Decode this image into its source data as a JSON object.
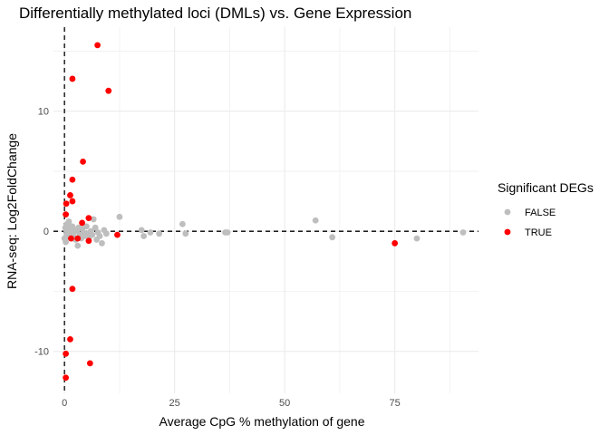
{
  "chart_data": {
    "type": "scatter",
    "title": "Differentially methylated loci (DMLs) vs. Gene Expression",
    "xlabel": "Average CpG % methylation of gene",
    "ylabel": "RNA-seq: Log2FoldChange",
    "xlim": [
      -2.5,
      94
    ],
    "ylim": [
      -13.5,
      17
    ],
    "x_ticks": [
      0,
      25,
      50,
      75
    ],
    "y_ticks": [
      -10,
      0,
      10
    ],
    "grid": true,
    "reference_lines": {
      "x": 0,
      "y": 0,
      "style": "dashed"
    },
    "legend": {
      "title": "Significant DEGs",
      "position": "right"
    },
    "series": [
      {
        "name": "FALSE",
        "color": "#bebebe",
        "points": [
          [
            0.0,
            -0.6
          ],
          [
            0.2,
            0.3
          ],
          [
            0.3,
            -0.9
          ],
          [
            0.4,
            0.1
          ],
          [
            0.5,
            -0.3
          ],
          [
            0.6,
            0.6
          ],
          [
            0.8,
            -0.1
          ],
          [
            1.0,
            0.8
          ],
          [
            1.2,
            -0.5
          ],
          [
            1.4,
            0.2
          ],
          [
            1.6,
            -0.2
          ],
          [
            1.8,
            0.4
          ],
          [
            2.0,
            -0.4
          ],
          [
            2.2,
            0.1
          ],
          [
            2.5,
            -0.7
          ],
          [
            2.8,
            0.0
          ],
          [
            3.0,
            -1.2
          ],
          [
            3.2,
            0.3
          ],
          [
            3.5,
            -0.3
          ],
          [
            3.8,
            -0.6
          ],
          [
            4.0,
            0.2
          ],
          [
            4.3,
            -0.1
          ],
          [
            4.6,
            -0.4
          ],
          [
            5.0,
            0.4
          ],
          [
            5.3,
            -0.2
          ],
          [
            5.6,
            -0.5
          ],
          [
            6.0,
            0.0
          ],
          [
            6.3,
            -0.3
          ],
          [
            6.6,
            1.0
          ],
          [
            7.0,
            0.3
          ],
          [
            7.3,
            -0.7
          ],
          [
            7.6,
            -0.1
          ],
          [
            8.0,
            -0.4
          ],
          [
            8.5,
            -1.0
          ],
          [
            9.0,
            0.1
          ],
          [
            9.5,
            -0.2
          ],
          [
            12.5,
            1.2
          ],
          [
            17.5,
            0.1
          ],
          [
            18.0,
            -0.4
          ],
          [
            19.5,
            -0.1
          ],
          [
            21.5,
            -0.2
          ],
          [
            26.8,
            0.6
          ],
          [
            27.5,
            -0.2
          ],
          [
            36.5,
            -0.1
          ],
          [
            37.0,
            -0.1
          ],
          [
            57.0,
            0.9
          ],
          [
            60.8,
            -0.5
          ],
          [
            80.0,
            -0.6
          ],
          [
            90.5,
            -0.1
          ]
        ]
      },
      {
        "name": "TRUE",
        "color": "#ff0000",
        "points": [
          [
            7.5,
            15.5
          ],
          [
            1.8,
            12.7
          ],
          [
            10.0,
            11.7
          ],
          [
            4.2,
            5.8
          ],
          [
            1.8,
            4.3
          ],
          [
            1.3,
            3.0
          ],
          [
            1.8,
            2.5
          ],
          [
            0.4,
            2.3
          ],
          [
            0.3,
            1.4
          ],
          [
            5.5,
            1.1
          ],
          [
            4.0,
            0.7
          ],
          [
            12.0,
            -0.3
          ],
          [
            3.0,
            -0.6
          ],
          [
            1.5,
            -0.6
          ],
          [
            5.5,
            -0.8
          ],
          [
            75.0,
            -1.0
          ],
          [
            1.8,
            -4.8
          ],
          [
            1.3,
            -9.0
          ],
          [
            0.3,
            -10.2
          ],
          [
            5.8,
            -11.0
          ],
          [
            0.3,
            -12.2
          ]
        ]
      }
    ]
  }
}
